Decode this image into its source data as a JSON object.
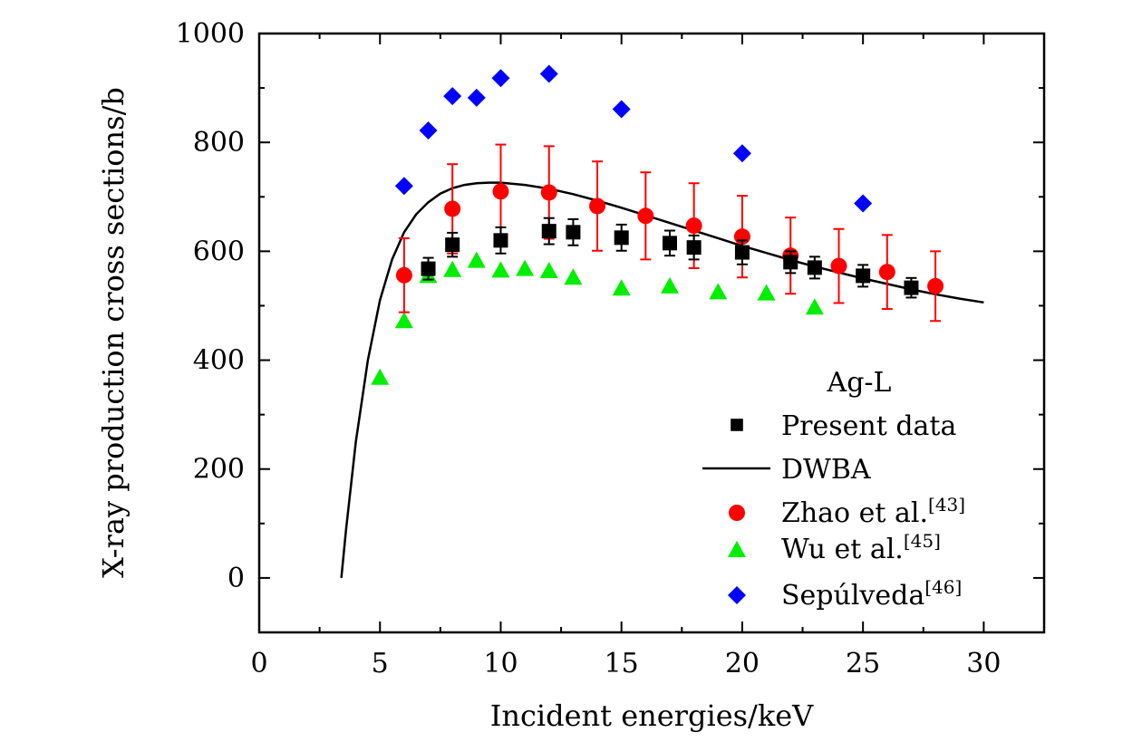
{
  "chart_data": {
    "type": "scatter",
    "xlabel": "Incident energies/keV",
    "ylabel": "X-ray production cross sections/b",
    "xlim": [
      0,
      32.5
    ],
    "ylim": [
      -100,
      1000
    ],
    "xticks": [
      0,
      5,
      10,
      15,
      20,
      25,
      30
    ],
    "yticks": [
      0,
      200,
      400,
      600,
      800,
      1000
    ],
    "grid": false,
    "legend": {
      "title": "Ag-L",
      "placement": "bottom-right",
      "entries": [
        "Present data",
        "DWBA",
        "Zhao et al.",
        "Wu et al.",
        "Sepúlveda"
      ],
      "refs": [
        "",
        "",
        "[43]",
        "[45]",
        "[46]"
      ]
    },
    "series": [
      {
        "name": "Present data",
        "marker": "square",
        "color": "#000000",
        "x": [
          7,
          8,
          10,
          12,
          13,
          15,
          17,
          18,
          20,
          22,
          23,
          25,
          27
        ],
        "y": [
          568,
          612,
          620,
          637,
          635,
          625,
          615,
          607,
          598,
          580,
          570,
          555,
          533
        ],
        "err": [
          20,
          22,
          24,
          24,
          24,
          24,
          23,
          22,
          22,
          20,
          20,
          20,
          18
        ]
      },
      {
        "name": "DWBA",
        "marker": "line",
        "color": "#000000",
        "x": [
          3.4,
          3.6,
          4,
          4.5,
          5,
          5.5,
          6,
          6.5,
          7,
          7.5,
          8,
          8.5,
          9,
          9.5,
          10,
          11,
          12,
          13,
          14,
          15,
          16,
          17,
          18,
          19,
          20,
          21,
          22,
          23,
          24,
          25,
          26,
          27,
          28,
          29,
          30
        ],
        "y": [
          0,
          90,
          250,
          400,
          510,
          585,
          635,
          668,
          690,
          706,
          716,
          722,
          725,
          726,
          726,
          722,
          715,
          705,
          693,
          680,
          666,
          652,
          638,
          624,
          610,
          597,
          584,
          572,
          561,
          550,
          540,
          530,
          521,
          513,
          506
        ]
      },
      {
        "name": "Zhao et al.",
        "marker": "circle",
        "color": "#ff0000",
        "x": [
          6,
          8,
          10,
          12,
          14,
          16,
          18,
          20,
          22,
          24,
          26,
          28
        ],
        "y": [
          556,
          678,
          710,
          708,
          683,
          665,
          647,
          627,
          592,
          573,
          562,
          536
        ],
        "err": [
          68,
          82,
          86,
          85,
          82,
          80,
          78,
          75,
          70,
          68,
          68,
          64
        ]
      },
      {
        "name": "Wu et al.",
        "marker": "triangle",
        "color": "#00ee00",
        "x": [
          5,
          6,
          7,
          8,
          9,
          10,
          11,
          12,
          13,
          15,
          17,
          19,
          21,
          23
        ],
        "y": [
          368,
          472,
          555,
          566,
          583,
          565,
          568,
          564,
          552,
          532,
          536,
          525,
          523,
          497
        ]
      },
      {
        "name": "Sepúlveda",
        "marker": "diamond",
        "color": "#0000ff",
        "x": [
          6,
          7,
          8,
          9,
          10,
          12,
          15,
          20,
          25
        ],
        "y": [
          720,
          822,
          885,
          882,
          918,
          926,
          861,
          780,
          688
        ]
      }
    ]
  }
}
